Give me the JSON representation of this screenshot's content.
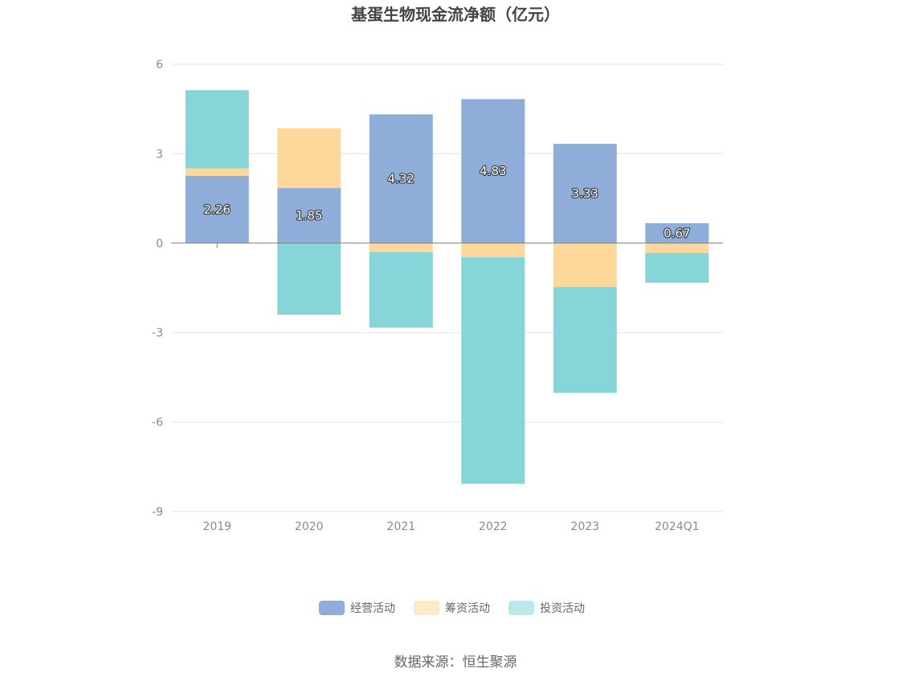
{
  "chart_data": {
    "type": "bar",
    "stacked": true,
    "title": "基蛋生物现金流净额（亿元）",
    "categories": [
      "2019",
      "2020",
      "2021",
      "2022",
      "2023",
      "2024Q1"
    ],
    "series": [
      {
        "name": "经营活动",
        "color": "#8eadd9",
        "values": [
          2.26,
          1.85,
          4.32,
          4.83,
          3.33,
          0.67
        ],
        "show_labels": true
      },
      {
        "name": "筹资活动",
        "color": "#fdd89a",
        "values": [
          0.25,
          2.0,
          -0.3,
          -0.47,
          -1.47,
          -0.33
        ]
      },
      {
        "name": "投资活动",
        "color": "#86d5d9",
        "values": [
          2.62,
          -2.4,
          -2.53,
          -7.6,
          -3.55,
          -1.0
        ]
      }
    ],
    "ylim": [
      -9,
      6
    ],
    "yticks": [
      6,
      3,
      0,
      -3,
      -6,
      -9
    ],
    "legend_position": "bottom",
    "grid": true
  },
  "source": "数据来源：恒生聚源"
}
